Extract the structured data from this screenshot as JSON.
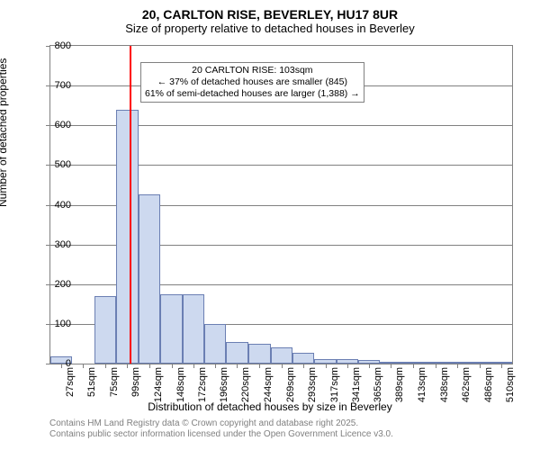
{
  "title": "20, CARLTON RISE, BEVERLEY, HU17 8UR",
  "subtitle": "Size of property relative to detached houses in Beverley",
  "ylabel": "Number of detached properties",
  "xlabel": "Distribution of detached houses by size in Beverley",
  "footer_line1": "Contains HM Land Registry data © Crown copyright and database right 2025.",
  "footer_line2": "Contains public sector information licensed under the Open Government Licence v3.0.",
  "chart": {
    "type": "histogram",
    "ylim": [
      0,
      800
    ],
    "ytick_step": 100,
    "bar_fill": "#cdd9ef",
    "bar_border": "#6b7fb3",
    "grid_color": "#808080",
    "background_color": "#ffffff",
    "ref_line_color": "#ff0000",
    "ref_line_x": 103,
    "x_categories": [
      "27sqm",
      "51sqm",
      "75sqm",
      "99sqm",
      "124sqm",
      "148sqm",
      "172sqm",
      "196sqm",
      "220sqm",
      "244sqm",
      "269sqm",
      "293sqm",
      "317sqm",
      "341sqm",
      "365sqm",
      "389sqm",
      "413sqm",
      "438sqm",
      "462sqm",
      "486sqm",
      "510sqm"
    ],
    "x_tick_values": [
      27,
      51,
      75,
      99,
      124,
      148,
      172,
      196,
      220,
      244,
      269,
      293,
      317,
      341,
      365,
      389,
      413,
      438,
      462,
      486,
      510
    ],
    "bars": [
      {
        "x0": 15,
        "x1": 39,
        "y": 18
      },
      {
        "x0": 39,
        "x1": 63,
        "y": 0
      },
      {
        "x0": 63,
        "x1": 87,
        "y": 170
      },
      {
        "x0": 87,
        "x1": 112,
        "y": 640
      },
      {
        "x0": 112,
        "x1": 136,
        "y": 425
      },
      {
        "x0": 136,
        "x1": 160,
        "y": 175
      },
      {
        "x0": 160,
        "x1": 184,
        "y": 175
      },
      {
        "x0": 184,
        "x1": 208,
        "y": 100
      },
      {
        "x0": 208,
        "x1": 232,
        "y": 55
      },
      {
        "x0": 232,
        "x1": 257,
        "y": 50
      },
      {
        "x0": 257,
        "x1": 281,
        "y": 40
      },
      {
        "x0": 281,
        "x1": 305,
        "y": 28
      },
      {
        "x0": 305,
        "x1": 329,
        "y": 12
      },
      {
        "x0": 329,
        "x1": 353,
        "y": 12
      },
      {
        "x0": 353,
        "x1": 377,
        "y": 10
      },
      {
        "x0": 377,
        "x1": 401,
        "y": 5
      },
      {
        "x0": 401,
        "x1": 426,
        "y": 5
      },
      {
        "x0": 426,
        "x1": 450,
        "y": 2
      },
      {
        "x0": 450,
        "x1": 474,
        "y": 2
      },
      {
        "x0": 474,
        "x1": 498,
        "y": 5
      },
      {
        "x0": 498,
        "x1": 522,
        "y": 2
      }
    ],
    "x_domain": [
      15,
      522
    ],
    "annotation": {
      "line1": "20 CARLTON RISE: 103sqm",
      "line2": "← 37% of detached houses are smaller (845)",
      "line3": "61% of semi-detached houses are larger (1,388) →"
    },
    "title_fontsize": 14,
    "label_fontsize": 12,
    "tick_fontsize": 11,
    "annotation_fontsize": 10.5
  }
}
